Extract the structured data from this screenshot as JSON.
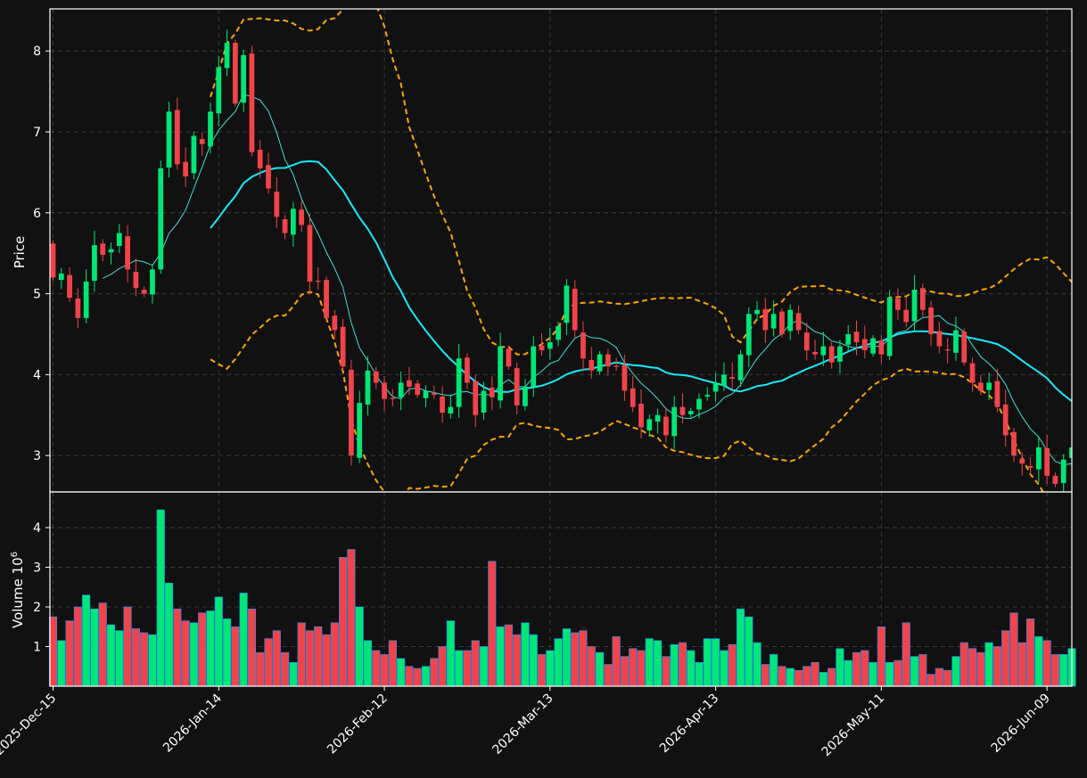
{
  "colors": {
    "background": "#111111",
    "up": "#00e676",
    "down": "#f0444a",
    "sma_fast": "#40e0d0",
    "sma_slow": "#18e8f8",
    "bollinger": "#ffa500",
    "grid": "#3a3a3a"
  },
  "chart_data": {
    "type": "candlestick",
    "grid": true,
    "price_panel": {
      "ylabel": "Price",
      "ylim": [
        2.55,
        8.52
      ],
      "yticks": [
        "3",
        "4",
        "5",
        "6",
        "7",
        "8"
      ]
    },
    "volume_panel": {
      "ylabel": "Volume  10",
      "ylabel_exponent": "6",
      "ylim": [
        0,
        4.9
      ],
      "yticks": [
        "1",
        "2",
        "3",
        "4"
      ]
    },
    "xticks": [
      {
        "label": "2025-Dec-15",
        "index": 0
      },
      {
        "label": "2026-Jan-14",
        "index": 20
      },
      {
        "label": "2026-Feb-12",
        "index": 40
      },
      {
        "label": "2026-Mar-13",
        "index": 60
      },
      {
        "label": "2026-Apr-13",
        "index": 80
      },
      {
        "label": "2026-May-11",
        "index": 100
      },
      {
        "label": "2026-Jun-09",
        "index": 120
      }
    ],
    "closes": [
      5.2,
      5.25,
      4.95,
      4.7,
      5.15,
      5.6,
      5.48,
      5.55,
      5.75,
      5.3,
      5.07,
      5.0,
      5.3,
      6.55,
      7.25,
      6.6,
      6.45,
      6.95,
      6.85,
      7.25,
      7.8,
      8.1,
      7.35,
      7.95,
      6.75,
      6.55,
      6.3,
      5.95,
      5.75,
      6.05,
      5.85,
      5.15,
      5.15,
      4.7,
      4.55,
      4.1,
      3.0,
      3.65,
      4.05,
      3.9,
      3.7,
      3.7,
      3.9,
      3.85,
      3.75,
      3.8,
      3.75,
      3.53,
      3.6,
      4.2,
      3.9,
      3.5,
      3.8,
      3.72,
      4.35,
      4.1,
      3.62,
      3.85,
      4.35,
      4.3,
      4.4,
      4.6,
      5.1,
      4.55,
      4.2,
      4.05,
      4.25,
      4.1,
      4.1,
      3.8,
      3.6,
      3.35,
      3.45,
      3.5,
      3.25,
      3.6,
      3.5,
      3.55,
      3.7,
      3.75,
      3.9,
      4.0,
      3.95,
      4.25,
      4.75,
      4.8,
      4.55,
      4.75,
      4.5,
      4.8,
      4.55,
      4.3,
      4.25,
      4.35,
      4.15,
      4.35,
      4.5,
      4.4,
      4.3,
      4.45,
      4.25,
      4.95,
      4.8,
      4.65,
      5.05,
      4.8,
      4.5,
      4.35,
      4.3,
      4.55,
      4.15,
      3.9,
      3.8,
      3.9,
      3.6,
      3.25,
      3.0,
      2.9,
      2.85,
      3.1,
      2.75,
      2.65,
      2.95,
      3.1
    ],
    "volumes": [
      1.75,
      1.15,
      1.65,
      2.0,
      2.3,
      1.95,
      2.1,
      1.55,
      1.4,
      2.0,
      1.45,
      1.35,
      1.3,
      4.45,
      2.6,
      1.95,
      1.65,
      1.6,
      1.85,
      1.9,
      2.25,
      1.7,
      1.5,
      2.35,
      1.95,
      0.85,
      1.2,
      1.4,
      0.85,
      0.6,
      1.6,
      1.4,
      1.5,
      1.3,
      1.6,
      3.25,
      3.45,
      2.0,
      1.15,
      0.9,
      0.8,
      1.15,
      0.7,
      0.5,
      0.45,
      0.5,
      0.7,
      1.0,
      1.65,
      0.9,
      0.9,
      1.15,
      1.0,
      3.15,
      1.5,
      1.55,
      1.3,
      1.6,
      1.3,
      0.8,
      0.9,
      1.2,
      1.45,
      1.35,
      1.4,
      1.0,
      0.85,
      0.55,
      1.25,
      0.75,
      0.95,
      0.9,
      1.2,
      1.15,
      0.75,
      1.05,
      1.1,
      0.9,
      0.6,
      1.2,
      1.2,
      0.9,
      1.05,
      1.95,
      1.75,
      1.1,
      0.55,
      0.8,
      0.5,
      0.45,
      0.4,
      0.5,
      0.6,
      0.35,
      0.45,
      0.95,
      0.65,
      0.85,
      0.9,
      0.6,
      1.5,
      0.6,
      0.65,
      1.6,
      0.75,
      0.8,
      0.3,
      0.45,
      0.4,
      0.75,
      1.1,
      0.95,
      0.85,
      1.1,
      1.0,
      1.4,
      1.85,
      1.1,
      1.7,
      1.25,
      1.15,
      0.8,
      0.8,
      0.95
    ],
    "series": [
      {
        "kind": "sma",
        "window": 7
      },
      {
        "kind": "sma",
        "window": 20
      },
      {
        "kind": "bollinger",
        "window": 20,
        "k": 2
      }
    ]
  }
}
